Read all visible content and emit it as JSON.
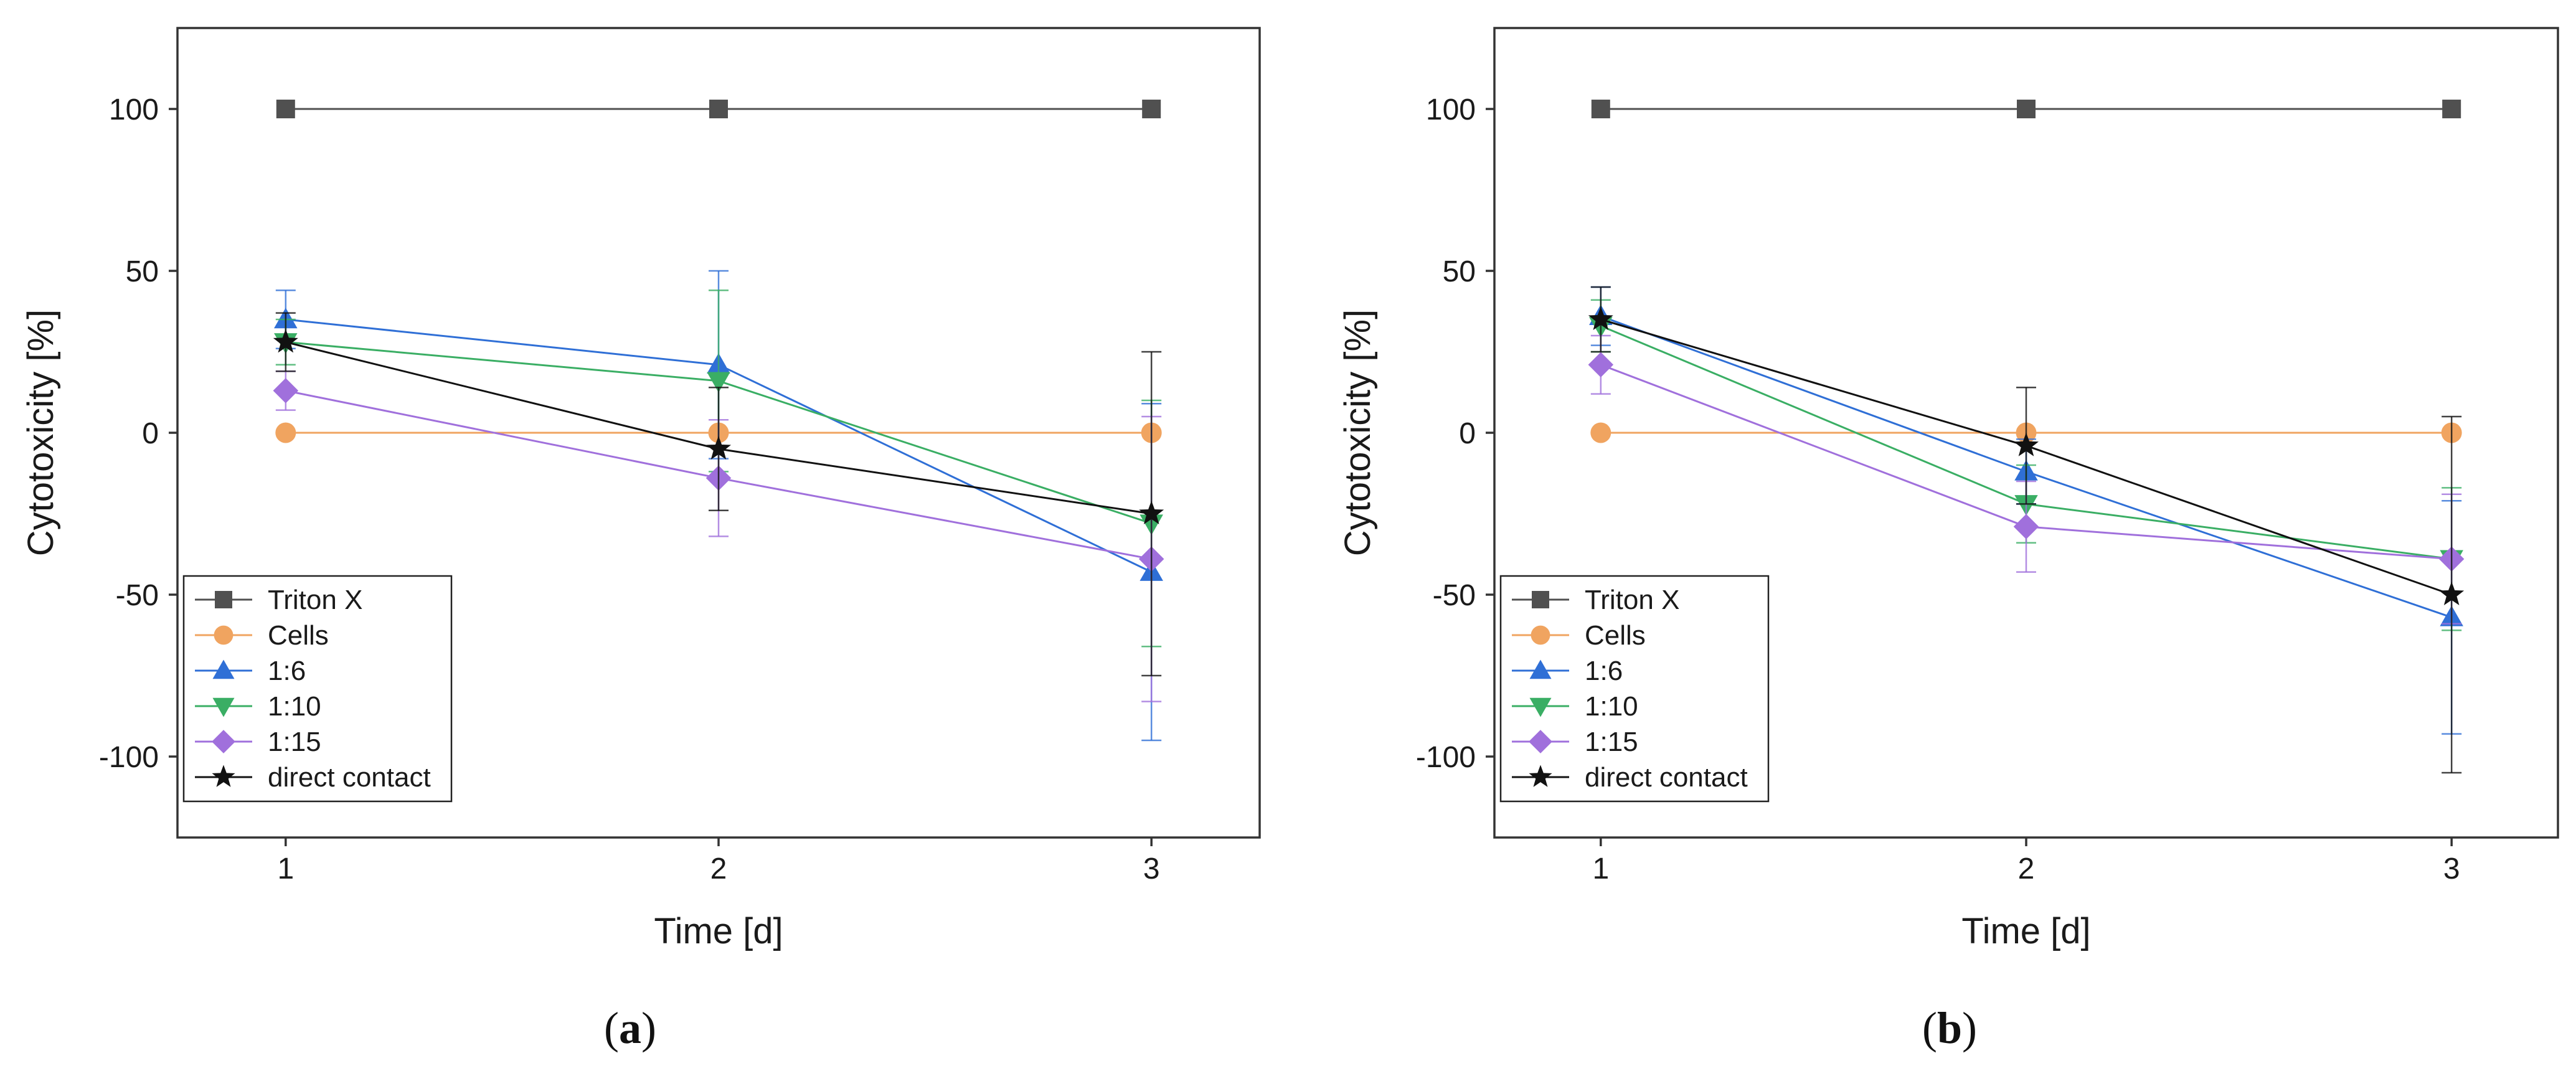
{
  "chart_data": [
    {
      "type": "line",
      "panel": "a",
      "caption_open": "(",
      "caption_label": "a",
      "caption_close": ")",
      "xlabel": "Time [d]",
      "ylabel": "Cytotoxicity [%]",
      "x": [
        1,
        2,
        3
      ],
      "xticks": [
        1,
        2,
        3
      ],
      "yticks": [
        -100,
        -50,
        0,
        50,
        100
      ],
      "xlim": [
        0.75,
        3.25
      ],
      "ylim": [
        -125,
        125
      ],
      "legend_position": "bottom-left",
      "series": [
        {
          "name": "Triton X",
          "marker": "square",
          "color": "#505050",
          "values": [
            100,
            100,
            100
          ],
          "err": [
            0,
            0,
            0
          ]
        },
        {
          "name": "Cells",
          "marker": "circle",
          "color": "#F0A460",
          "values": [
            0,
            0,
            0
          ],
          "err": [
            0,
            0,
            0
          ]
        },
        {
          "name": "1:6",
          "marker": "triangle-up",
          "color": "#2F6FD6",
          "values": [
            35,
            21,
            -43
          ],
          "err": [
            9,
            29,
            52
          ]
        },
        {
          "name": "1:10",
          "marker": "triangle-down",
          "color": "#3AAE64",
          "values": [
            28,
            16,
            -28
          ],
          "err": [
            7,
            28,
            38
          ]
        },
        {
          "name": "1:15",
          "marker": "diamond",
          "color": "#A070DC",
          "values": [
            13,
            -14,
            -39
          ],
          "err": [
            6,
            18,
            44
          ]
        },
        {
          "name": "direct contact",
          "marker": "star",
          "color": "#111111",
          "values": [
            28,
            -5,
            -25
          ],
          "err": [
            9,
            19,
            50
          ]
        }
      ]
    },
    {
      "type": "line",
      "panel": "b",
      "caption_open": "(",
      "caption_label": "b",
      "caption_close": ")",
      "xlabel": "Time [d]",
      "ylabel": "Cytotoxicity [%]",
      "x": [
        1,
        2,
        3
      ],
      "xticks": [
        1,
        2,
        3
      ],
      "yticks": [
        -100,
        -50,
        0,
        50,
        100
      ],
      "xlim": [
        0.75,
        3.25
      ],
      "ylim": [
        -125,
        125
      ],
      "legend_position": "bottom-left",
      "series": [
        {
          "name": "Triton X",
          "marker": "square",
          "color": "#505050",
          "values": [
            100,
            100,
            100
          ],
          "err": [
            0,
            0,
            0
          ]
        },
        {
          "name": "Cells",
          "marker": "circle",
          "color": "#F0A460",
          "values": [
            0,
            0,
            0
          ],
          "err": [
            0,
            0,
            0
          ]
        },
        {
          "name": "1:6",
          "marker": "triangle-up",
          "color": "#2F6FD6",
          "values": [
            36,
            -12,
            -57
          ],
          "err": [
            9,
            10,
            36
          ]
        },
        {
          "name": "1:10",
          "marker": "triangle-down",
          "color": "#3AAE64",
          "values": [
            33,
            -22,
            -39
          ],
          "err": [
            8,
            12,
            22
          ]
        },
        {
          "name": "1:15",
          "marker": "diamond",
          "color": "#A070DC",
          "values": [
            21,
            -29,
            -39
          ],
          "err": [
            9,
            14,
            20
          ]
        },
        {
          "name": "direct contact",
          "marker": "star",
          "color": "#111111",
          "values": [
            35,
            -4,
            -50
          ],
          "err": [
            10,
            18,
            55
          ]
        }
      ]
    }
  ]
}
